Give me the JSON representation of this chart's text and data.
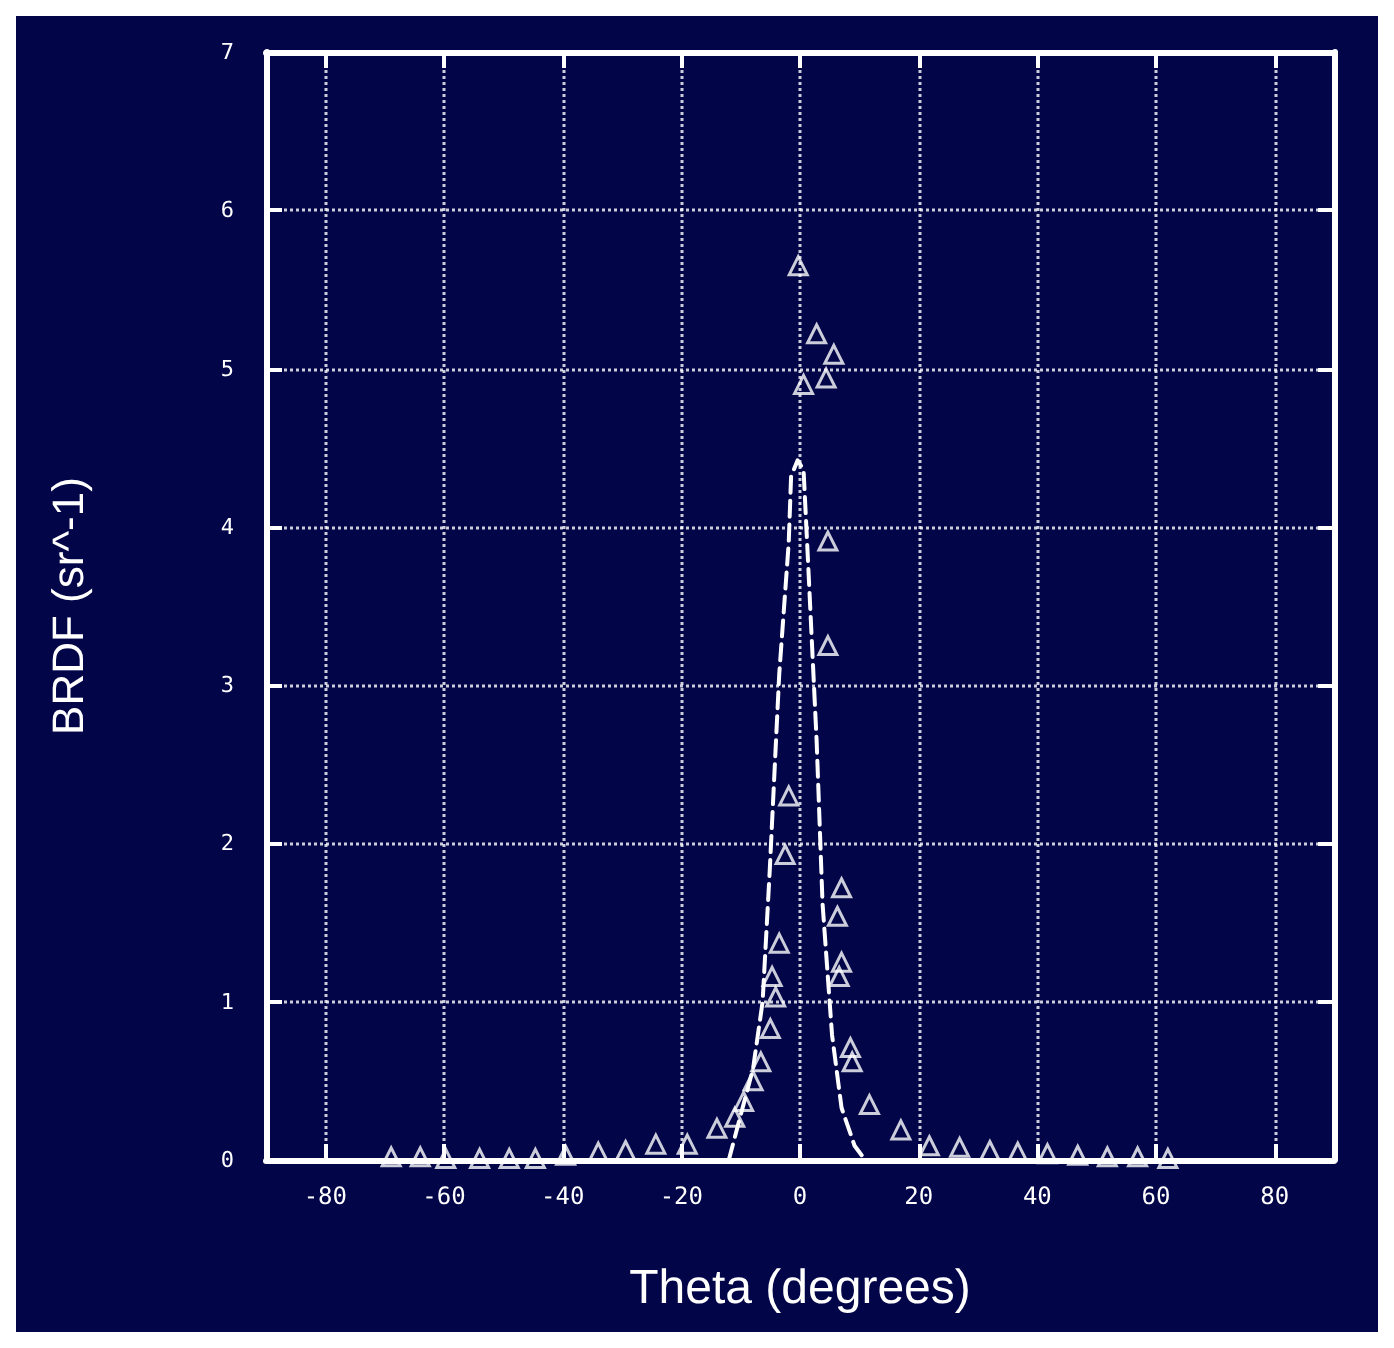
{
  "chart_data": {
    "type": "scatter",
    "xlabel": "Theta (degrees)",
    "ylabel": "BRDF (sr^-1)",
    "xlim": [
      -90,
      90
    ],
    "xticks": [
      -80,
      -60,
      -40,
      -20,
      0,
      20,
      40,
      60,
      80
    ],
    "ylim": [
      0,
      7
    ],
    "yticks": [
      0,
      1,
      2,
      3,
      4,
      5,
      6,
      7
    ],
    "grid": true,
    "series": [
      {
        "color": "#ffffff",
        "marker": "triangle",
        "x": [
          -68.9,
          -64,
          -59.7,
          -54,
          -49,
          -44.6,
          -39.5,
          -34,
          -29.4,
          -24.3,
          -19,
          -14,
          -11,
          -9.5,
          -7.9,
          -6.6,
          -5,
          -4.7,
          -4.1,
          -3.5,
          -2.5,
          -1.9,
          -0.3,
          0.6,
          2.8,
          4.4,
          5.7,
          4.7,
          4.7,
          6.3,
          7.0,
          7.0,
          6.6,
          8.5,
          8.8,
          11.7,
          17,
          21.8,
          26.9,
          32,
          36.7,
          41.7,
          46.8,
          51.8,
          56.9,
          62
        ],
        "values": [
          0.02,
          0.02,
          0.01,
          0.01,
          0.01,
          0.01,
          0.03,
          0.05,
          0.06,
          0.1,
          0.1,
          0.2,
          0.27,
          0.37,
          0.5,
          0.62,
          0.83,
          1.16,
          1.03,
          1.37,
          1.93,
          2.3,
          5.65,
          4.9,
          5.22,
          4.94,
          5.09,
          3.91,
          3.25,
          1.54,
          1.72,
          1.25,
          1.16,
          0.71,
          0.62,
          0.35,
          0.19,
          0.09,
          0.08,
          0.06,
          0.05,
          0.04,
          0.03,
          0.02,
          0.02,
          0.01
        ]
      },
      {
        "type": "line",
        "color": "#ffffff",
        "marker": "none",
        "line_style": "dashed",
        "x": [
          -12,
          -7.9,
          -6.3,
          -5.1,
          -3.5,
          -1.9,
          -1.5,
          -0.4,
          0.6,
          1.2,
          2.8,
          3.8,
          5.4,
          7,
          9.2,
          11
        ],
        "values": [
          0,
          0.58,
          1.0,
          1.83,
          3.07,
          3.9,
          4.32,
          4.42,
          4.36,
          3.9,
          2.65,
          1.62,
          0.79,
          0.33,
          0.09,
          0
        ]
      }
    ]
  }
}
